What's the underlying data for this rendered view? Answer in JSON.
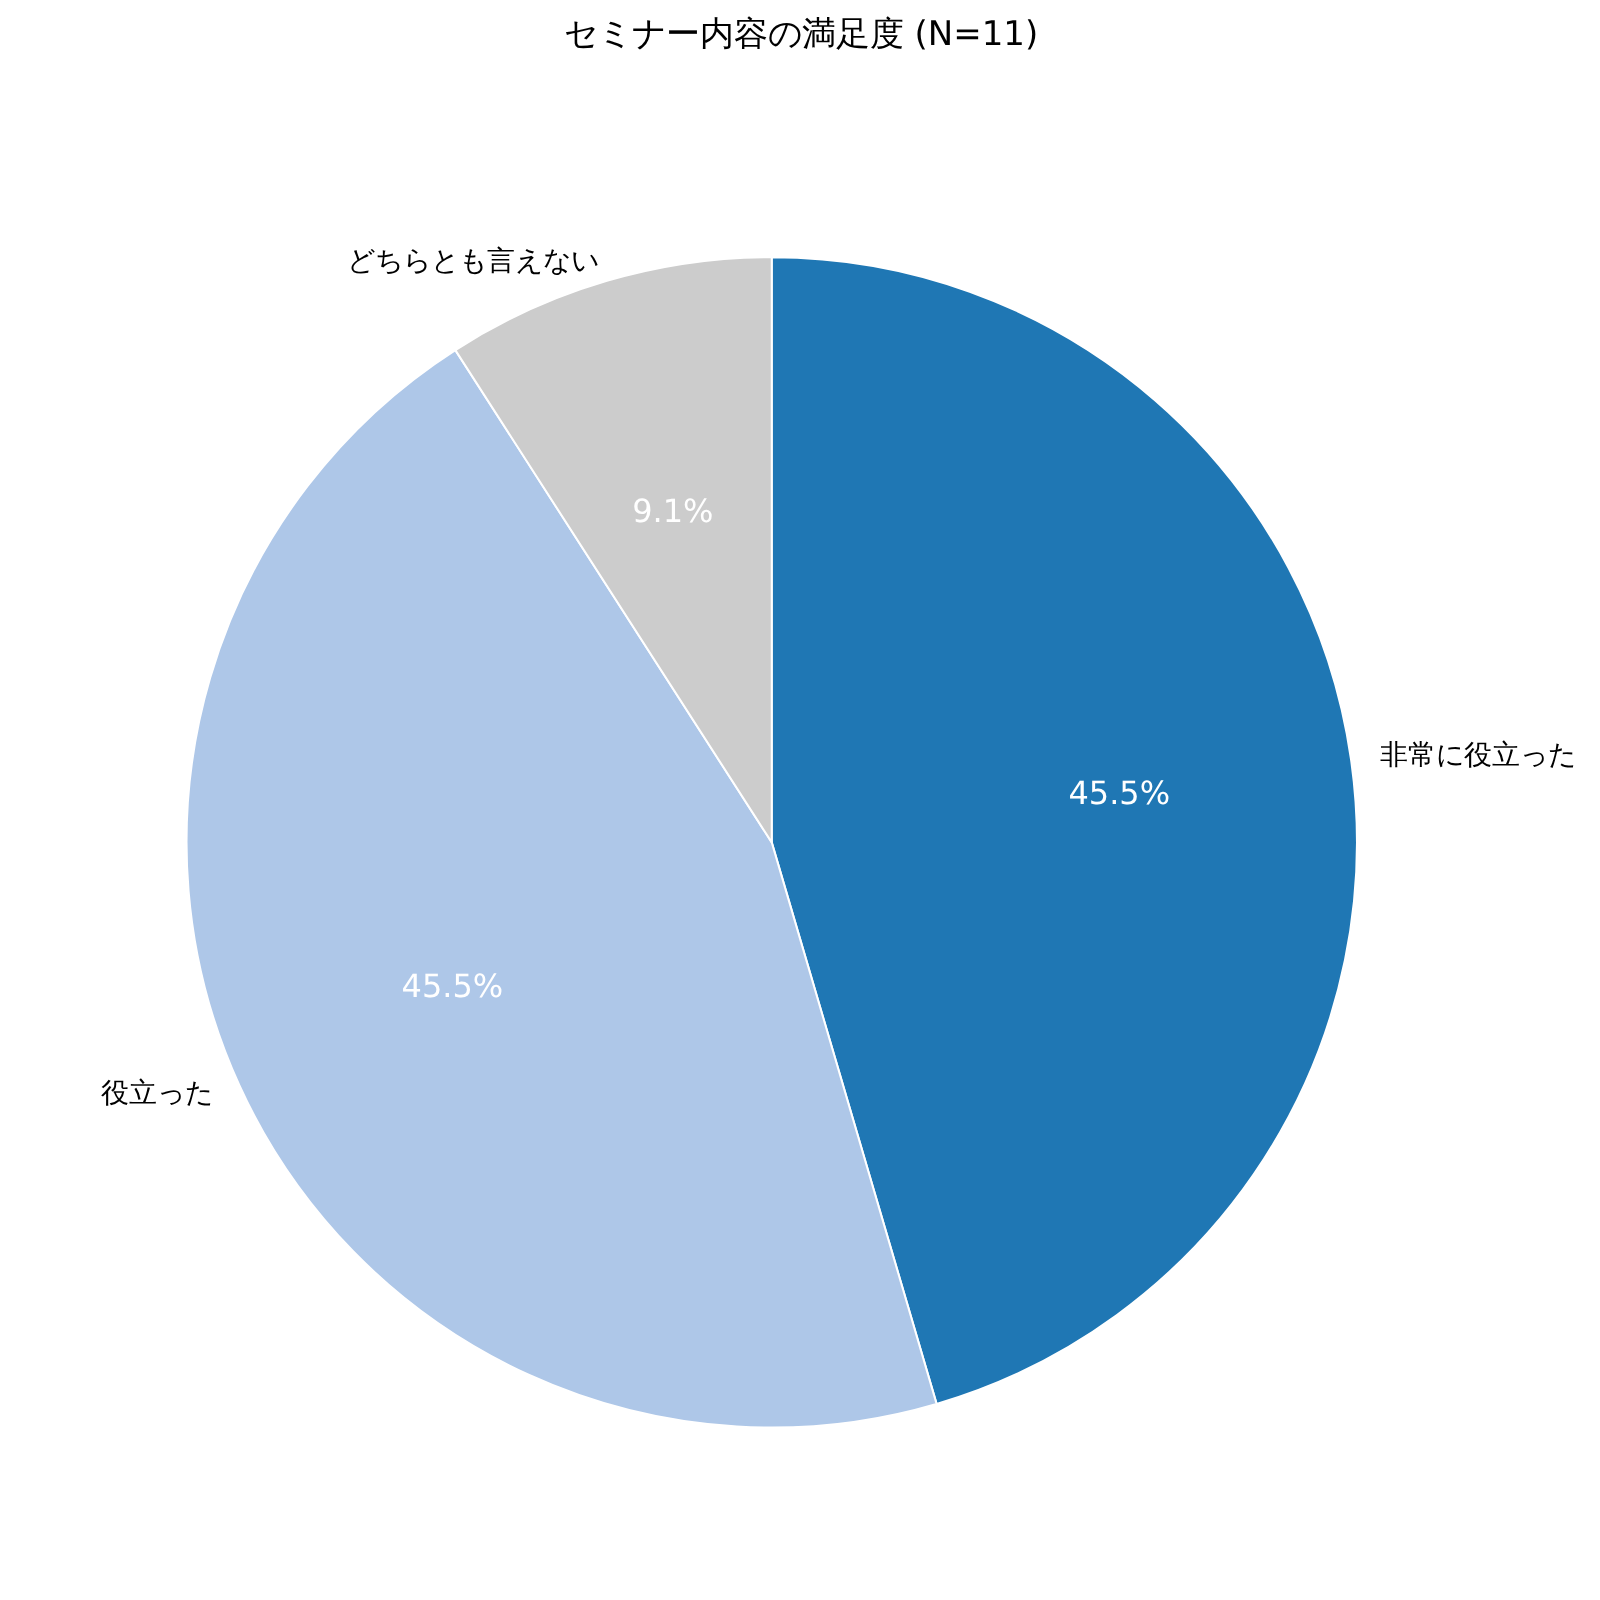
{
  "chart_data": {
    "type": "pie",
    "title": "セミナー内容の満足度 (N=11)",
    "categories": [
      "非常に役立った",
      "役立った",
      "どちらとも言えない"
    ],
    "values": [
      45.5,
      45.5,
      9.1
    ],
    "colors": [
      "#1f77b4",
      "#aec7e8",
      "#cccccc"
    ],
    "value_labels": [
      "45.5%",
      "45.5%",
      "9.1%"
    ]
  }
}
